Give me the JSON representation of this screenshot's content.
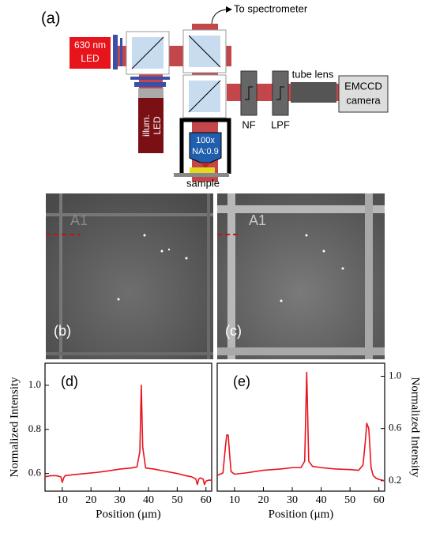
{
  "diagram": {
    "panel": "(a)",
    "spectrometer": "To spectrometer",
    "led_630": [
      "630 nm",
      "LED"
    ],
    "illum_led": [
      "illum.",
      "LED"
    ],
    "objective": [
      "100x",
      "NA:0.9"
    ],
    "sample": "sample",
    "nf": "NF",
    "lpf": "LPF",
    "tube_lens": "tube lens",
    "camera": [
      "EMCCD",
      "camera"
    ]
  },
  "images": [
    {
      "panel": "(b)",
      "well": "A1"
    },
    {
      "panel": "(c)",
      "well": "A1"
    }
  ],
  "chart_data": [
    {
      "type": "line",
      "title": "(d)",
      "x_label": "Position (μm)",
      "y_label": "Normalized Intensity",
      "x": [
        4,
        6,
        8,
        9.5,
        10,
        10.5,
        11,
        14,
        18,
        22,
        26,
        30,
        34,
        36,
        37,
        37.5,
        38,
        39,
        42,
        46,
        50,
        53,
        55,
        56.5,
        57,
        57.5,
        58,
        59,
        59.5,
        60,
        61,
        62
      ],
      "series": [
        {
          "color": "#e8141c",
          "values": [
            0.585,
            0.59,
            0.59,
            0.585,
            0.56,
            0.58,
            0.59,
            0.595,
            0.6,
            0.605,
            0.612,
            0.62,
            0.625,
            0.63,
            0.7,
            1.0,
            0.72,
            0.625,
            0.62,
            0.61,
            0.6,
            0.59,
            0.585,
            0.575,
            0.55,
            0.575,
            0.58,
            0.575,
            0.55,
            0.565,
            0.57,
            0.57
          ]
        }
      ],
      "xlim": [
        4,
        62
      ],
      "xticks": [
        10,
        20,
        30,
        40,
        50,
        60
      ],
      "ylim": [
        0.52,
        1.1
      ],
      "yticks": [
        0.6,
        0.8,
        {
          "value": 1,
          "label": "1.0"
        }
      ]
    },
    {
      "type": "line",
      "title": "(e)",
      "x_label": "Position (μm)",
      "y_label": "Normalized Intensity",
      "x": [
        4,
        6,
        6.8,
        7.3,
        7.8,
        8.3,
        8.8,
        10,
        14,
        20,
        26,
        30,
        33,
        34.3,
        35,
        35.7,
        37,
        40,
        45,
        50,
        53,
        54.5,
        55.3,
        55.8,
        56.5,
        57.3,
        58,
        59,
        60,
        62
      ],
      "series": [
        {
          "color": "#e8141c",
          "axis": "y2",
          "values": [
            0.24,
            0.26,
            0.45,
            0.55,
            0.55,
            0.4,
            0.27,
            0.25,
            0.26,
            0.28,
            0.29,
            0.3,
            0.3,
            0.35,
            1.03,
            0.35,
            0.31,
            0.3,
            0.29,
            0.285,
            0.28,
            0.32,
            0.5,
            0.64,
            0.6,
            0.3,
            0.24,
            0.22,
            0.21,
            0.2
          ]
        }
      ],
      "xlim": [
        4,
        62
      ],
      "xticks": [
        10,
        20,
        30,
        40,
        50,
        60
      ],
      "y2lim": [
        0.12,
        1.1
      ],
      "y2ticks": [
        0.2,
        0.6,
        {
          "value": 1,
          "label": "1.0"
        }
      ]
    }
  ]
}
